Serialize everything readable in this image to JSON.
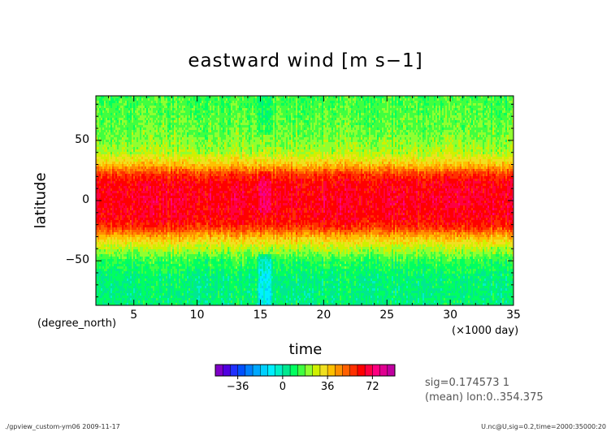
{
  "chart_data": {
    "type": "heatmap",
    "title": "eastward wind [m s−1]",
    "xlabel": "time",
    "ylabel": "latitude",
    "x_unit": "(×1000 day)",
    "y_unit": "(degree_north)",
    "xlim": [
      2,
      35
    ],
    "ylim": [
      -87,
      87
    ],
    "x_ticks": [
      5,
      10,
      15,
      20,
      25,
      30,
      35
    ],
    "y_ticks": [
      50,
      0,
      -50
    ],
    "y_tick_labels": [
      "50",
      "0",
      "−50"
    ],
    "latitude_profile": [
      {
        "lat": 87,
        "value": 14
      },
      {
        "lat": 70,
        "value": 16
      },
      {
        "lat": 55,
        "value": 18
      },
      {
        "lat": 40,
        "value": 24
      },
      {
        "lat": 30,
        "value": 38
      },
      {
        "lat": 22,
        "value": 56
      },
      {
        "lat": 15,
        "value": 64
      },
      {
        "lat": 0,
        "value": 66
      },
      {
        "lat": -15,
        "value": 64
      },
      {
        "lat": -22,
        "value": 58
      },
      {
        "lat": -30,
        "value": 40
      },
      {
        "lat": -40,
        "value": 24
      },
      {
        "lat": -50,
        "value": 12
      },
      {
        "lat": -65,
        "value": 6
      },
      {
        "lat": -87,
        "value": 6
      }
    ],
    "colorbar": {
      "min": -54,
      "max": 90,
      "step": 6,
      "tick_values": [
        -36,
        0,
        36,
        72
      ],
      "tick_labels": [
        "−36",
        "0",
        "36",
        "72"
      ],
      "colors": [
        "#7f00c8",
        "#5000e0",
        "#2030ff",
        "#0050ff",
        "#0080ff",
        "#00a8ff",
        "#00d0ff",
        "#00f0ff",
        "#00f0c8",
        "#00e890",
        "#00ff60",
        "#40ff40",
        "#90ff30",
        "#d0f000",
        "#f0e020",
        "#ffc000",
        "#ff9000",
        "#ff6000",
        "#ff3000",
        "#ff0000",
        "#ff0040",
        "#ff0080",
        "#e00090",
        "#c000a0"
      ]
    }
  },
  "annotations": {
    "sig": "sig=0.174573 1",
    "mean": "(mean) lon:0..354.375"
  },
  "footer": {
    "left": "./gpview_custom-ym06  2009-11-17",
    "right": "U.nc@U,sig=0.2,time=2000:35000:20"
  }
}
